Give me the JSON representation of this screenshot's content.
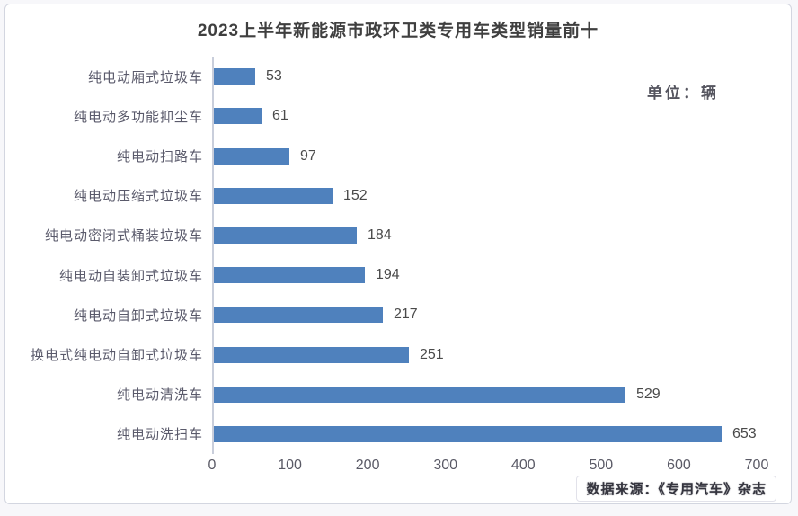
{
  "page": {
    "title": "2023上半年新能源市政环卫类专用车类型销量前十",
    "unit_label": "单位：辆",
    "source_note": "数据来源：《专用汽车》杂志"
  },
  "chart_data": {
    "type": "bar",
    "orientation": "horizontal",
    "title": "2023上半年新能源市政环卫类专用车类型销量前十",
    "unit": "辆",
    "categories": [
      "纯电动厢式垃圾车",
      "纯电动多功能抑尘车",
      "纯电动扫路车",
      "纯电动压缩式垃圾车",
      "纯电动密闭式桶装垃圾车",
      "纯电动自装卸式垃圾车",
      "纯电动自卸式垃圾车",
      "换电式纯电动自卸式垃圾车",
      "纯电动清洗车",
      "纯电动洗扫车"
    ],
    "values": [
      53,
      61,
      97,
      152,
      184,
      194,
      217,
      251,
      529,
      653
    ],
    "xlabel": "",
    "ylabel": "",
    "xlim": [
      0,
      700
    ],
    "x_ticks": [
      0,
      100,
      200,
      300,
      400,
      500,
      600,
      700
    ],
    "grid": false,
    "legend": "none",
    "value_labels": true,
    "bar_color": "#4f81bd"
  },
  "colors": {
    "bar": "#4f81bd",
    "axis_line": "#c9cedb",
    "title_text": "#3f3f3f",
    "category_text": "#5a5a6b",
    "value_text": "#4a4a4a",
    "tick_text": "#5a5a66",
    "frame_border": "#d3d6e0",
    "background": "#ffffff"
  }
}
